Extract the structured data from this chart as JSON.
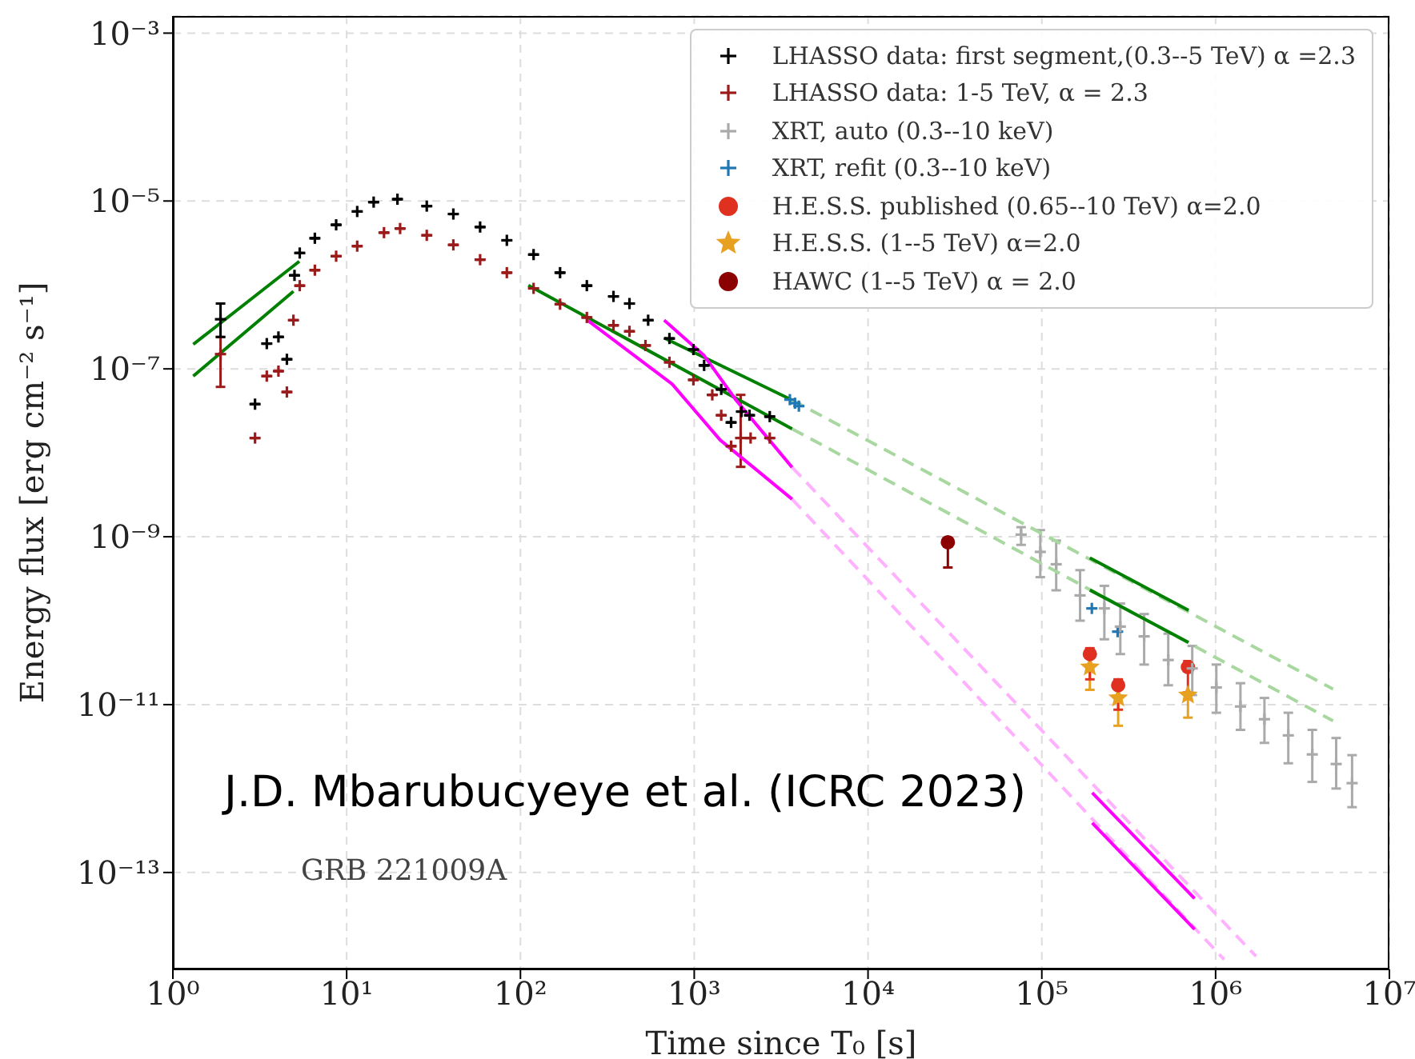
{
  "chart_data": {
    "type": "scatter",
    "xlabel": "Time since T₀ [s]",
    "ylabel": "Energy flux [erg cm⁻² s⁻¹]",
    "log": "xy",
    "grid": true,
    "legend": "top right",
    "xlim": [
      1,
      10000000
    ],
    "ylim": [
      7e-15,
      0.0016
    ],
    "xticks": [
      {
        "value": 1,
        "label": "10⁰"
      },
      {
        "value": 10,
        "label": "10¹"
      },
      {
        "value": 100,
        "label": "10²"
      },
      {
        "value": 1000,
        "label": "10³"
      },
      {
        "value": 10000,
        "label": "10⁴"
      },
      {
        "value": 100000,
        "label": "10⁵"
      },
      {
        "value": 1000000,
        "label": "10⁶"
      },
      {
        "value": 10000000,
        "label": "10⁷"
      }
    ],
    "yticks": [
      {
        "value": 1e-13,
        "label": "10⁻¹³"
      },
      {
        "value": 1e-11,
        "label": "10⁻¹¹"
      },
      {
        "value": 1e-09,
        "label": "10⁻⁹"
      },
      {
        "value": 1e-07,
        "label": "10⁻⁷"
      },
      {
        "value": 1e-05,
        "label": "10⁻⁵"
      },
      {
        "value": 0.001,
        "label": "10⁻³"
      }
    ],
    "annotations": [
      "J.D. Mbarubucyeye et al. (ICRC 2023)",
      "GRB 221009A"
    ],
    "series": [
      {
        "name": "LHASSO data: first segment,(0.3--5 TeV) α =2.3",
        "type": "scatter",
        "marker": "cross",
        "color": "#000000",
        "x": [
          1.88,
          2.97,
          3.47,
          4.05,
          4.53,
          5.01,
          5.37,
          6.56,
          8.7,
          11.5,
          14.3,
          19.6,
          28.9,
          41.1,
          58.6,
          83.5,
          119,
          169,
          241,
          343,
          424,
          543,
          720,
          989,
          1140,
          1430,
          1630,
          1870,
          2080,
          2720
        ],
        "values": [
          3.9e-07,
          3.8e-08,
          2e-07,
          2.4e-07,
          1.3e-07,
          1.3e-06,
          2.4e-06,
          3.6e-06,
          5.2e-06,
          7.5e-06,
          9.7e-06,
          1.05e-05,
          8.7e-06,
          7e-06,
          4.9e-06,
          3.4e-06,
          2.3e-06,
          1.4e-06,
          9.8e-07,
          7.3e-07,
          6e-07,
          3.8e-07,
          2.3e-07,
          1.7e-07,
          1.1e-07,
          5.7e-08,
          2.3e-08,
          3.1e-08,
          2.8e-08,
          2.7e-08
        ],
        "errors": [
          [
            2.4e-07,
            6e-07
          ],
          null,
          null,
          null,
          null,
          null,
          null,
          null,
          null,
          null,
          null,
          null,
          null,
          null,
          null,
          null,
          null,
          null,
          null,
          null,
          null,
          null,
          null,
          null,
          null,
          null,
          null,
          null,
          null,
          null
        ]
      },
      {
        "name": "LHASSO data: 1-5 TeV, α = 2.3",
        "type": "scatter",
        "marker": "cross",
        "color": "#9b1b1b",
        "x": [
          1.88,
          2.97,
          3.47,
          4.05,
          4.53,
          4.94,
          5.37,
          6.56,
          8.7,
          11.5,
          16.4,
          20.3,
          28.9,
          41.1,
          58.6,
          83.5,
          119,
          169,
          241,
          343,
          424,
          524,
          720,
          989,
          1270,
          1430,
          1630,
          1850,
          2110,
          2720
        ],
        "values": [
          1.5e-07,
          1.5e-08,
          8.2e-08,
          9.4e-08,
          5.3e-08,
          3.8e-07,
          9.8e-07,
          1.5e-06,
          2.2e-06,
          2.9e-06,
          4.2e-06,
          4.7e-06,
          3.9e-06,
          3e-06,
          2e-06,
          1.4e-06,
          9.1e-07,
          5.9e-07,
          4.1e-07,
          3.3e-07,
          2.8e-07,
          1.9e-07,
          1.2e-07,
          7.4e-08,
          4.9e-08,
          2.8e-08,
          1.2e-08,
          1.5e-08,
          1.5e-08,
          1.5e-08
        ],
        "errors": [
          [
            6.1e-08,
            2.4e-07
          ],
          null,
          null,
          null,
          null,
          null,
          null,
          null,
          null,
          null,
          null,
          null,
          null,
          null,
          null,
          null,
          null,
          null,
          null,
          null,
          null,
          null,
          null,
          null,
          null,
          null,
          null,
          [
            6.8e-09,
            4.9e-08
          ],
          null,
          null
        ]
      },
      {
        "name": "XRT, auto (0.3--10 keV)",
        "type": "scatter",
        "marker": "cross",
        "color": "#aaaaaa",
        "x": [
          76000,
          98000,
          121000,
          166000,
          229000,
          283000,
          388000,
          534000,
          734000,
          1010000,
          1390000,
          1910000,
          2620000,
          3600000,
          4940000,
          6100000
        ],
        "values": [
          1.06e-09,
          6.6e-10,
          4.7e-10,
          2e-10,
          1.4e-10,
          8.5e-11,
          6.5e-11,
          3.4e-11,
          2.7e-11,
          1.6e-11,
          9.5e-12,
          6.7e-12,
          4.3e-12,
          2.55e-12,
          1.96e-12,
          1.16e-12
        ],
        "errors": [
          [
            8e-10,
            1.3e-09
          ],
          [
            3.3e-10,
            1.2e-09
          ],
          [
            2.3e-10,
            9e-10
          ],
          [
            1e-10,
            4e-10
          ],
          [
            6e-11,
            2.6e-10
          ],
          [
            4e-11,
            1.6e-10
          ],
          [
            3e-11,
            1.2e-10
          ],
          [
            1.7e-11,
            7e-11
          ],
          [
            1.3e-11,
            5e-11
          ],
          [
            8e-12,
            3e-11
          ],
          [
            5e-12,
            1.8e-11
          ],
          [
            3.5e-12,
            1.2e-11
          ],
          [
            2e-12,
            8e-12
          ],
          [
            1.2e-12,
            5e-12
          ],
          [
            1e-12,
            4e-12
          ],
          [
            6e-13,
            2.5e-12
          ]
        ]
      },
      {
        "name": "XRT, refit (0.3--10 keV)",
        "type": "scatter",
        "marker": "cross",
        "color": "#1f77b4",
        "x": [
          3550,
          3800,
          4000,
          194000,
          273000
        ],
        "values": [
          4.3e-08,
          3.9e-08,
          3.6e-08,
          1.4e-10,
          7.4e-11
        ]
      },
      {
        "name": "H.E.S.S. published (0.65--10 TeV) α=2.0",
        "type": "scatter",
        "marker": "circle",
        "color": "#e03020",
        "x": [
          189000,
          275000,
          693000
        ],
        "values": [
          4e-11,
          1.7e-11,
          2.8e-11
        ],
        "errors": [
          [
            2e-11,
            4.7e-11
          ],
          [
            8.7e-12,
            2e-11
          ],
          [
            1.4e-11,
            3.3e-11
          ]
        ]
      },
      {
        "name": "H.E.S.S. (1--5 TeV) α=2.0",
        "type": "scatter",
        "marker": "star",
        "color": "#e8a020",
        "x": [
          189000,
          275000,
          693000
        ],
        "values": [
          2.8e-11,
          1.2e-11,
          1.3e-11
        ],
        "errors": [
          [
            1.5e-11,
            2.8e-11
          ],
          [
            5.6e-12,
            1.2e-11
          ],
          [
            7e-12,
            1.3e-11
          ]
        ]
      },
      {
        "name": "HAWC (1--5 TeV) α = 2.0",
        "type": "scatter",
        "marker": "circle",
        "color": "#8b0000",
        "x": [
          28800
        ],
        "values": [
          8.6e-10
        ],
        "errors": [
          [
            4.3e-10,
            8.6e-10
          ]
        ]
      },
      {
        "type": "line",
        "line_style": "solid",
        "color": "#008000",
        "x": [
          1.31,
          5.34
        ],
        "values": [
          1.96e-07,
          1.91e-06
        ]
      },
      {
        "type": "line",
        "line_style": "solid",
        "color": "#008000",
        "x": [
          671,
          3660
        ],
        "values": [
          2.34e-07,
          4.24e-08
        ]
      },
      {
        "type": "line",
        "line_style": "solid",
        "color": "#008000",
        "x": [
          1.31,
          4.94
        ],
        "values": [
          8.2e-08,
          8.4e-07
        ]
      },
      {
        "type": "line",
        "line_style": "solid",
        "color": "#008000",
        "x": [
          111,
          3660
        ],
        "values": [
          9.9e-07,
          1.93e-08
        ]
      },
      {
        "type": "line",
        "line_style": "dashed",
        "color": "#a8d8a0",
        "x": [
          3660,
          4740000
        ],
        "values": [
          4.24e-08,
          1.53e-11
        ]
      },
      {
        "type": "line",
        "line_style": "dashed",
        "color": "#a8d8a0",
        "x": [
          3660,
          4740000
        ],
        "values": [
          1.93e-08,
          6.4e-12
        ]
      },
      {
        "type": "line",
        "line_style": "solid",
        "color": "#008000",
        "x": [
          189000,
          699000
        ],
        "values": [
          5.6e-10,
          1.33e-10
        ]
      },
      {
        "type": "line",
        "line_style": "solid",
        "color": "#008000",
        "x": [
          189000,
          699000
        ],
        "values": [
          2.32e-10,
          5.5e-11
        ]
      },
      {
        "type": "line",
        "line_style": "solid",
        "color": "#ff00ff",
        "x": [
          671,
          1140,
          1740,
          3660
        ],
        "values": [
          3.8e-07,
          1.44e-07,
          4.24e-08,
          6.7e-09
        ]
      },
      {
        "type": "line",
        "line_style": "solid",
        "color": "#ff00ff",
        "x": [
          243,
          746,
          1410,
          3660
        ],
        "values": [
          3.8e-07,
          6.6e-08,
          1.42e-08,
          2.8e-09
        ]
      },
      {
        "type": "line",
        "line_style": "dashed",
        "color": "#ffb0ff",
        "x": [
          3660,
          1710000
        ],
        "values": [
          6.7e-09,
          1e-14
        ]
      },
      {
        "type": "line",
        "line_style": "dashed",
        "color": "#ffb0ff",
        "x": [
          3660,
          1120000
        ],
        "values": [
          2.8e-09,
          9.2e-15
        ]
      },
      {
        "type": "line",
        "line_style": "solid",
        "color": "#ff00ff",
        "x": [
          195000,
          757000
        ],
        "values": [
          8.9e-13,
          4.9e-14
        ]
      },
      {
        "type": "line",
        "line_style": "solid",
        "color": "#ff00ff",
        "x": [
          195000,
          757000
        ],
        "values": [
          3.9e-13,
          2.1e-14
        ]
      }
    ]
  }
}
